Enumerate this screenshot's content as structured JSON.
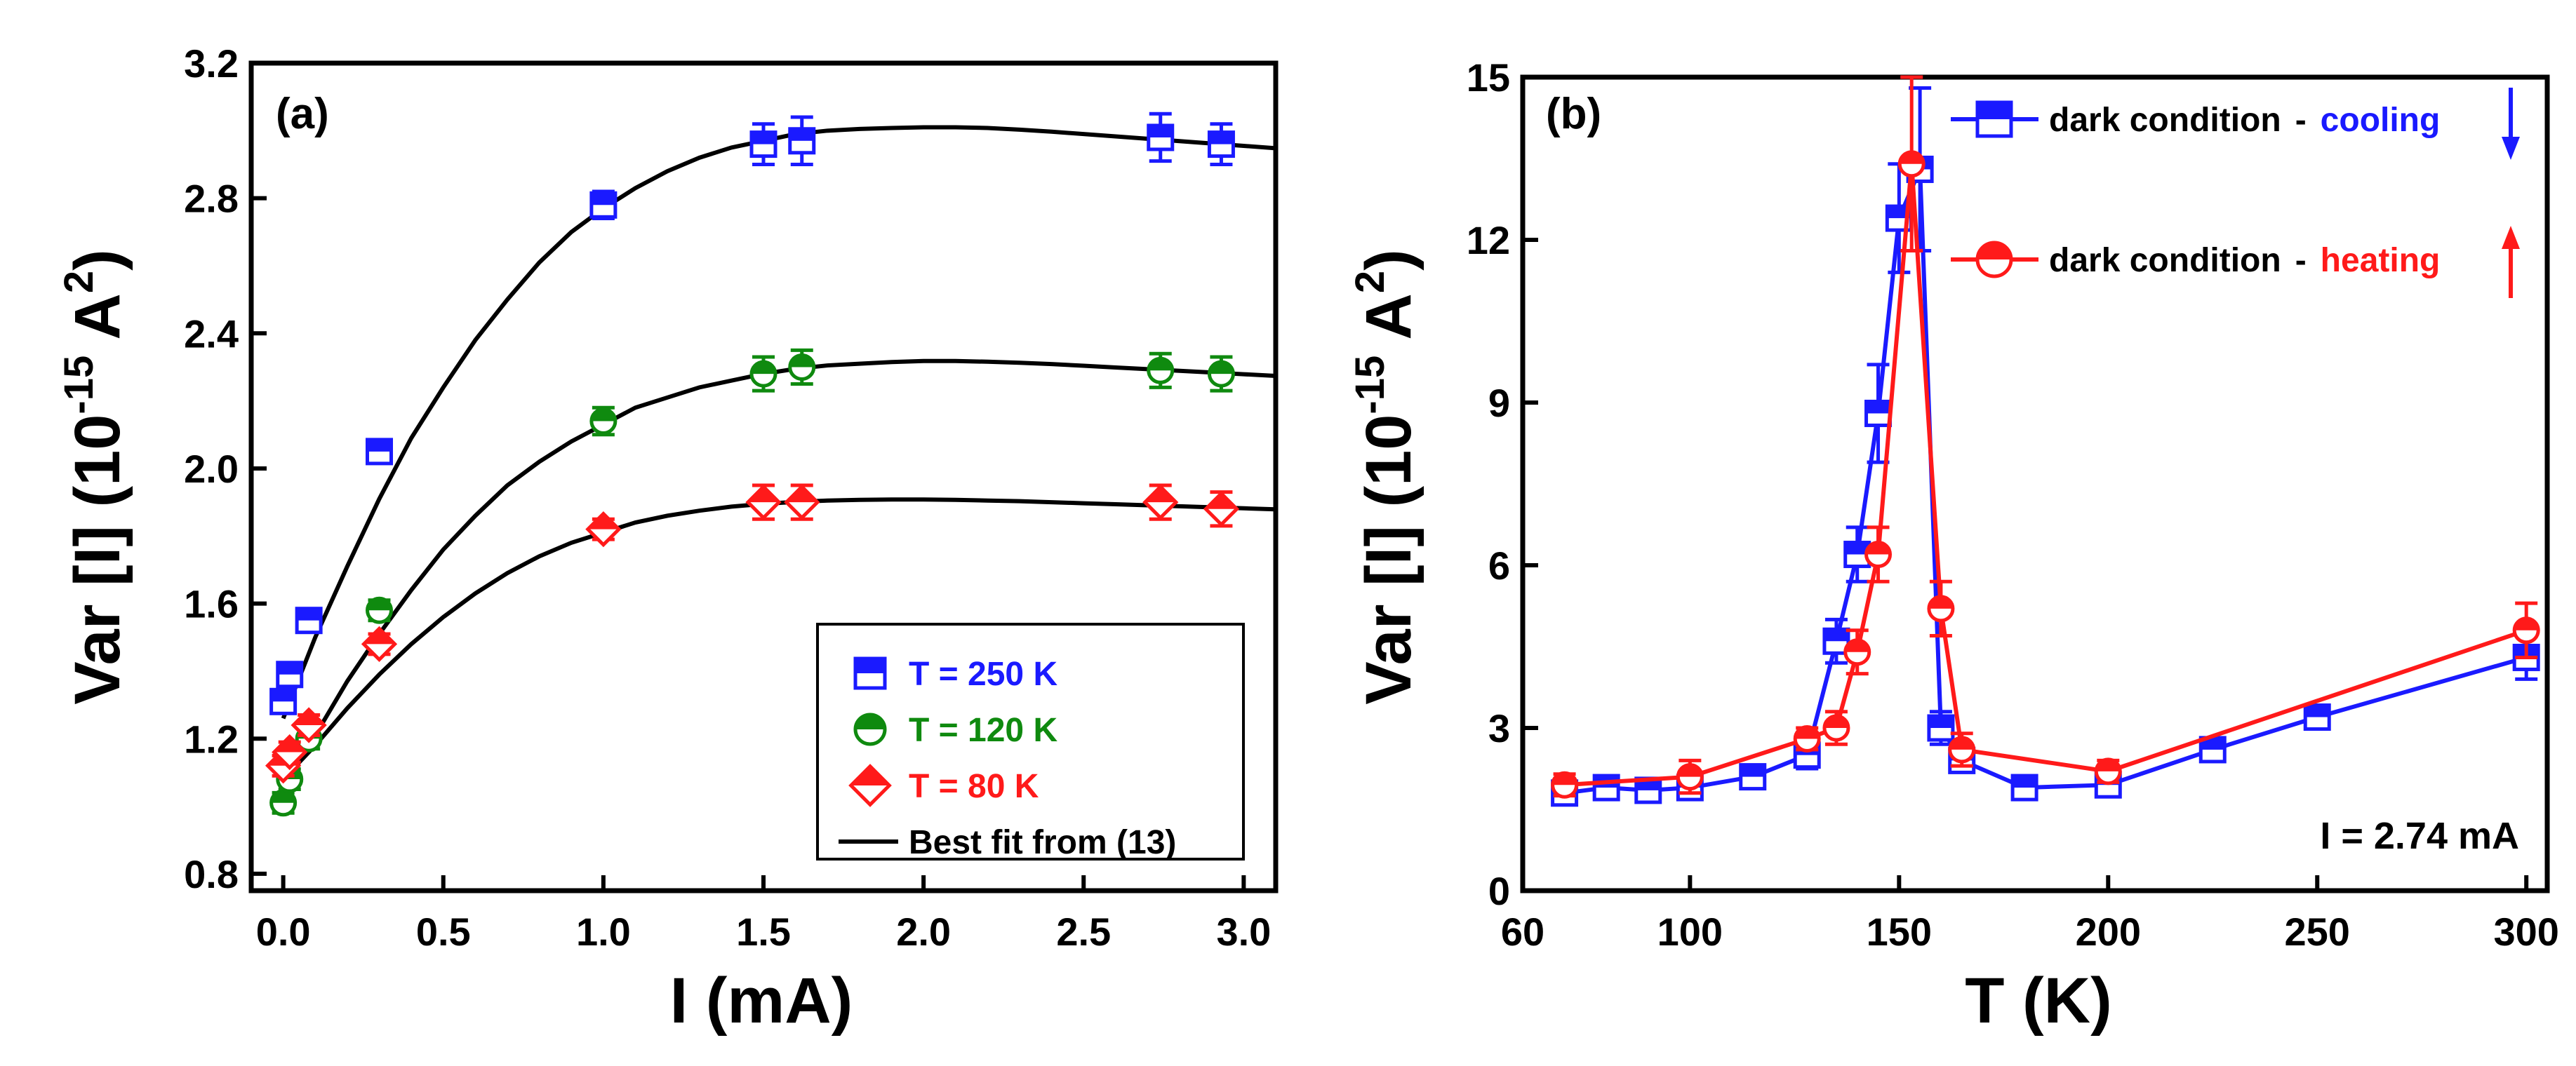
{
  "colors": {
    "blue": "#1a1aff",
    "green": "#0f8a0f",
    "red": "#ff1a1a",
    "black": "#000000"
  },
  "chart_data": [
    {
      "type": "scatter",
      "panel_label": "(a)",
      "xlabel": "I (mA)",
      "ylabel_main": "Var [I] (10",
      "ylabel_exp": "-15",
      "ylabel_unit": " A",
      "ylabel_unit_exp": "2",
      "ylabel_close": ")",
      "xlim": [
        -0.1,
        3.1
      ],
      "ylim": [
        0.75,
        3.2
      ],
      "xticks": [
        0.0,
        0.5,
        1.0,
        1.5,
        2.0,
        2.5,
        3.0
      ],
      "xtick_labels": [
        "0.0",
        "0.5",
        "1.0",
        "1.5",
        "2.0",
        "2.5",
        "3.0"
      ],
      "yticks": [
        0.8,
        1.2,
        1.6,
        2.0,
        2.4,
        2.8,
        3.2
      ],
      "ytick_labels": [
        "0.8",
        "1.2",
        "1.6",
        "2.0",
        "2.4",
        "2.8",
        "3.2"
      ],
      "legend_position": "bottom-right",
      "series": [
        {
          "name": "T = 250 K",
          "color": "#1a1aff",
          "marker": "square",
          "x": [
            0.0,
            0.02,
            0.08,
            0.3,
            1.0,
            1.5,
            1.62,
            2.74,
            2.93
          ],
          "y": [
            1.31,
            1.39,
            1.55,
            2.05,
            2.78,
            2.96,
            2.97,
            2.98,
            2.96
          ],
          "err": [
            0.03,
            0.03,
            0.03,
            0.03,
            0.04,
            0.06,
            0.07,
            0.07,
            0.06
          ]
        },
        {
          "name": "T = 120 K",
          "color": "#0f8a0f",
          "marker": "circle",
          "x": [
            0.0,
            0.02,
            0.08,
            0.3,
            1.0,
            1.5,
            1.62,
            2.74,
            2.93
          ],
          "y": [
            1.01,
            1.08,
            1.2,
            1.58,
            2.14,
            2.28,
            2.3,
            2.29,
            2.28
          ],
          "err": [
            0.03,
            0.03,
            0.03,
            0.03,
            0.04,
            0.05,
            0.05,
            0.05,
            0.05
          ]
        },
        {
          "name": "T = 80 K",
          "color": "#ff1a1a",
          "marker": "diamond",
          "x": [
            0.0,
            0.02,
            0.08,
            0.3,
            1.0,
            1.5,
            1.62,
            2.74,
            2.93
          ],
          "y": [
            1.12,
            1.16,
            1.24,
            1.48,
            1.82,
            1.9,
            1.9,
            1.9,
            1.88
          ],
          "err": [
            0.03,
            0.03,
            0.03,
            0.03,
            0.03,
            0.05,
            0.05,
            0.05,
            0.05
          ]
        }
      ],
      "fits": [
        {
          "name": "Best fit from (13)",
          "color": "#000000",
          "x": [
            0.0,
            0.05,
            0.1,
            0.2,
            0.3,
            0.4,
            0.5,
            0.6,
            0.7,
            0.8,
            0.9,
            1.0,
            1.1,
            1.2,
            1.3,
            1.4,
            1.5,
            1.6,
            1.7,
            1.8,
            1.9,
            2.0,
            2.1,
            2.2,
            2.3,
            2.4,
            2.5,
            2.6,
            2.7,
            2.8,
            2.9,
            3.0,
            3.1
          ],
          "y": [
            1.26,
            1.38,
            1.5,
            1.71,
            1.91,
            2.09,
            2.24,
            2.38,
            2.5,
            2.61,
            2.7,
            2.77,
            2.83,
            2.88,
            2.92,
            2.95,
            2.97,
            2.99,
            3.0,
            3.005,
            3.008,
            3.01,
            3.01,
            3.008,
            3.003,
            2.997,
            2.99,
            2.983,
            2.976,
            2.969,
            2.962,
            2.955,
            2.948
          ]
        },
        {
          "name": "",
          "color": "#000000",
          "x": [
            0.0,
            0.05,
            0.1,
            0.2,
            0.3,
            0.4,
            0.5,
            0.6,
            0.7,
            0.8,
            0.9,
            1.0,
            1.1,
            1.2,
            1.3,
            1.4,
            1.5,
            1.6,
            1.7,
            1.8,
            1.9,
            2.0,
            2.1,
            2.2,
            2.3,
            2.4,
            2.5,
            2.6,
            2.7,
            2.8,
            2.9,
            3.0,
            3.1
          ],
          "y": [
            1.06,
            1.13,
            1.21,
            1.37,
            1.51,
            1.64,
            1.76,
            1.86,
            1.95,
            2.02,
            2.08,
            2.13,
            2.18,
            2.21,
            2.24,
            2.26,
            2.28,
            2.295,
            2.305,
            2.31,
            2.315,
            2.318,
            2.318,
            2.316,
            2.313,
            2.309,
            2.304,
            2.299,
            2.294,
            2.289,
            2.284,
            2.279,
            2.274
          ]
        },
        {
          "name": "",
          "color": "#000000",
          "x": [
            0.0,
            0.05,
            0.1,
            0.2,
            0.3,
            0.4,
            0.5,
            0.6,
            0.7,
            0.8,
            0.9,
            1.0,
            1.1,
            1.2,
            1.3,
            1.4,
            1.5,
            1.6,
            1.7,
            1.8,
            1.9,
            2.0,
            2.1,
            2.2,
            2.3,
            2.4,
            2.5,
            2.6,
            2.7,
            2.8,
            2.9,
            3.0,
            3.1
          ],
          "y": [
            1.08,
            1.13,
            1.18,
            1.29,
            1.39,
            1.48,
            1.56,
            1.63,
            1.69,
            1.74,
            1.78,
            1.81,
            1.84,
            1.86,
            1.875,
            1.887,
            1.895,
            1.901,
            1.905,
            1.907,
            1.908,
            1.908,
            1.907,
            1.905,
            1.903,
            1.9,
            1.897,
            1.894,
            1.891,
            1.888,
            1.885,
            1.882,
            1.879
          ]
        }
      ],
      "legend": [
        {
          "label": "T = 250 K",
          "color": "#1a1aff",
          "marker": "square"
        },
        {
          "label": "T = 120 K",
          "color": "#0f8a0f",
          "marker": "circle"
        },
        {
          "label": "T = 80 K",
          "color": "#ff1a1a",
          "marker": "diamond"
        },
        {
          "label": "Best fit from (13)",
          "color": "#000000",
          "marker": "line"
        }
      ]
    },
    {
      "type": "line",
      "panel_label": "(b)",
      "xlabel": "T (K)",
      "ylabel_main": "Var [I] (10",
      "ylabel_exp": "-15",
      "ylabel_unit": " A",
      "ylabel_unit_exp": "2",
      "ylabel_close": ")",
      "xlim": [
        60,
        305
      ],
      "ylim": [
        0,
        15
      ],
      "xticks": [
        60,
        100,
        150,
        200,
        250,
        300
      ],
      "xtick_labels": [
        "60",
        "100",
        "150",
        "200",
        "250",
        "300"
      ],
      "yticks": [
        0,
        3,
        6,
        9,
        12,
        15
      ],
      "ytick_labels": [
        "0",
        "3",
        "6",
        "9",
        "12",
        "15"
      ],
      "annotation": "I = 2.74 mA",
      "legend_position": "top-right",
      "series": [
        {
          "name": "dark condition - cooling",
          "color": "#1a1aff",
          "marker": "square",
          "x": [
            70,
            80,
            90,
            100,
            115,
            128,
            135,
            140,
            145,
            150,
            155,
            160,
            165,
            180,
            200,
            225,
            250,
            300
          ],
          "y": [
            1.8,
            1.9,
            1.85,
            1.9,
            2.1,
            2.5,
            4.6,
            6.2,
            8.8,
            12.4,
            13.3,
            3.0,
            2.4,
            1.9,
            1.95,
            2.6,
            3.2,
            4.3
          ],
          "err": [
            0.2,
            0.2,
            0.2,
            0.2,
            0.2,
            0.25,
            0.4,
            0.5,
            0.9,
            1.0,
            1.5,
            0.3,
            0.2,
            0.2,
            0.2,
            0.2,
            0.2,
            0.4
          ]
        },
        {
          "name": "dark condition - heating",
          "color": "#ff1a1a",
          "marker": "circle",
          "x": [
            70,
            100,
            128,
            135,
            140,
            145,
            153,
            160,
            165,
            200,
            300
          ],
          "y": [
            1.95,
            2.1,
            2.8,
            3.0,
            4.4,
            6.2,
            13.4,
            5.2,
            2.6,
            2.2,
            4.8
          ],
          "err": [
            0.2,
            0.3,
            0.2,
            0.3,
            0.4,
            0.5,
            1.6,
            0.5,
            0.3,
            0.2,
            0.5
          ]
        }
      ],
      "legend": [
        {
          "label": "dark condition",
          "dash": "-",
          "state": "cooling",
          "arrow": "down",
          "color": "#1a1aff",
          "marker": "square"
        },
        {
          "label": "dark condition",
          "dash": "-",
          "state": "heating",
          "arrow": "up",
          "color": "#ff1a1a",
          "marker": "circle"
        }
      ]
    }
  ]
}
